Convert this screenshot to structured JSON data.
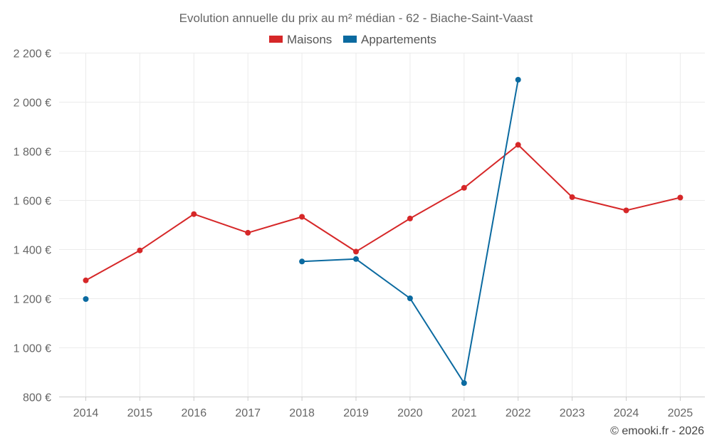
{
  "chart_data": {
    "type": "line",
    "title": "Evolution annuelle du prix au m² médian - 62 - Biache-Saint-Vaast",
    "categories": [
      "2014",
      "2015",
      "2016",
      "2017",
      "2018",
      "2019",
      "2020",
      "2021",
      "2022",
      "2023",
      "2024",
      "2025"
    ],
    "y_ticks": [
      800,
      1000,
      1200,
      1400,
      1600,
      1800,
      2000,
      2200
    ],
    "y_tick_labels": [
      "800 €",
      "1 000 €",
      "1 200 €",
      "1 400 €",
      "1 600 €",
      "1 800 €",
      "2 000 €",
      "2 200 €"
    ],
    "ylim": [
      800,
      2200
    ],
    "grid": true,
    "legend_position": "top-center",
    "series": [
      {
        "name": "Maisons",
        "color": "#d62728",
        "values": [
          1273,
          1395,
          1543,
          1467,
          1532,
          1390,
          1525,
          1650,
          1825,
          1612,
          1558,
          1610
        ]
      },
      {
        "name": "Appartements",
        "color": "#0b6aa0",
        "values": [
          1197,
          null,
          null,
          null,
          1350,
          1360,
          1200,
          855,
          2090,
          null,
          null,
          null
        ]
      }
    ],
    "credit": "© emooki.fr - 2026"
  }
}
